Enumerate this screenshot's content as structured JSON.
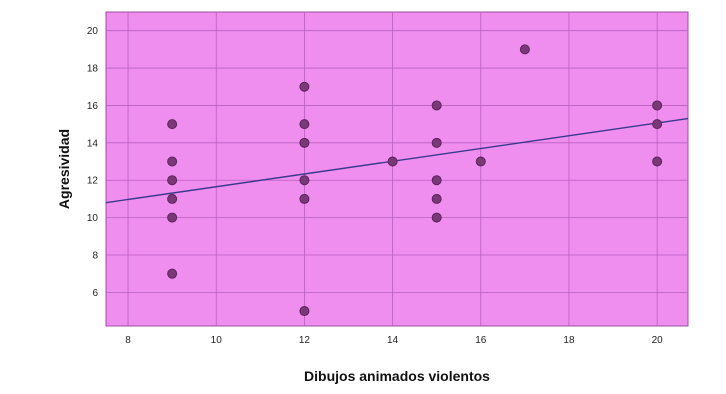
{
  "chart_data": {
    "type": "scatter",
    "title": "",
    "xlabel": "Dibujos animados violentos",
    "ylabel": "Agresividad",
    "xlim": [
      7.5,
      20.7
    ],
    "ylim": [
      4.2,
      21
    ],
    "xticks": [
      8,
      10,
      12,
      14,
      16,
      18,
      20
    ],
    "yticks": [
      6,
      8,
      10,
      12,
      14,
      16,
      18,
      20
    ],
    "grid": true,
    "points": [
      {
        "x": 9,
        "y": 15
      },
      {
        "x": 9,
        "y": 13
      },
      {
        "x": 9,
        "y": 12
      },
      {
        "x": 9,
        "y": 11
      },
      {
        "x": 9,
        "y": 10
      },
      {
        "x": 9,
        "y": 7
      },
      {
        "x": 12,
        "y": 17
      },
      {
        "x": 12,
        "y": 15
      },
      {
        "x": 12,
        "y": 14
      },
      {
        "x": 12,
        "y": 12
      },
      {
        "x": 12,
        "y": 11
      },
      {
        "x": 12,
        "y": 5
      },
      {
        "x": 14,
        "y": 13
      },
      {
        "x": 15,
        "y": 16
      },
      {
        "x": 15,
        "y": 14
      },
      {
        "x": 15,
        "y": 12
      },
      {
        "x": 15,
        "y": 11
      },
      {
        "x": 15,
        "y": 10
      },
      {
        "x": 16,
        "y": 13
      },
      {
        "x": 17,
        "y": 19
      },
      {
        "x": 20,
        "y": 16
      },
      {
        "x": 20,
        "y": 15
      },
      {
        "x": 20,
        "y": 13
      }
    ],
    "fit_line": {
      "x": [
        7.5,
        20.7
      ],
      "y": [
        10.8,
        15.3
      ]
    },
    "colors": {
      "plot_background": "#f08ef0",
      "grid": "#b85fbf",
      "point": "#7a3878",
      "point_stroke": "#5a2458",
      "fit_line": "#3a3a8c"
    }
  }
}
